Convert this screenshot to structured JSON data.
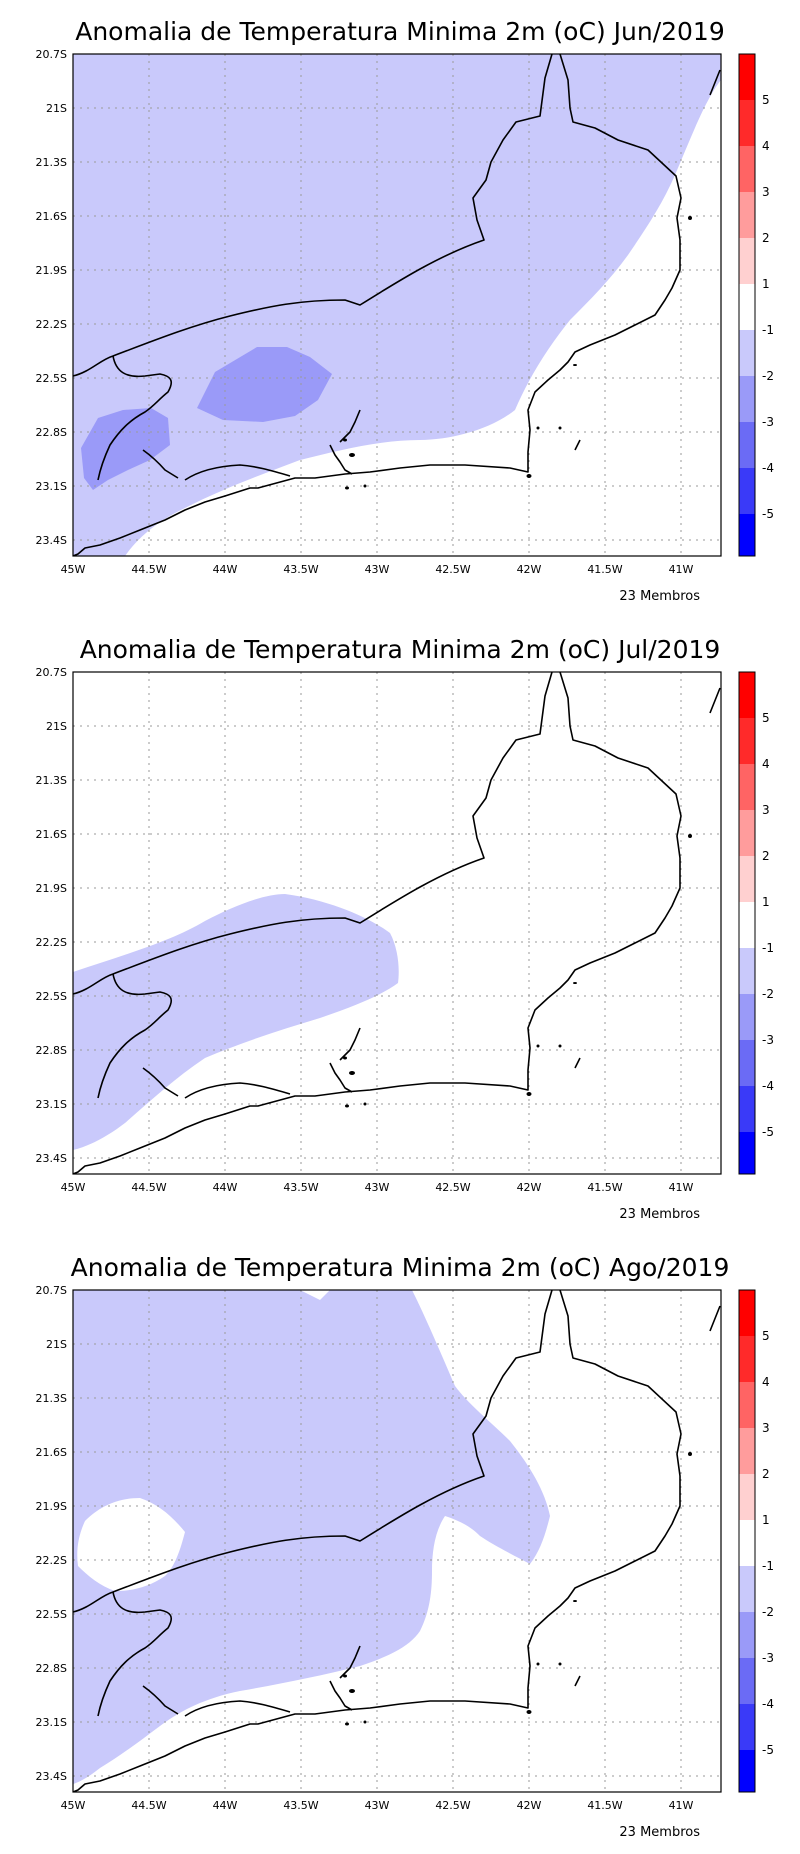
{
  "panels": [
    {
      "title": "Anomalia de Temperatura Minima 2m (oC) Jun/2019",
      "footer": "23 Membros",
      "shading_levels": [
        {
          "interval": "-2 to -1",
          "color": "#c9c9fb"
        },
        {
          "interval": "-3 to -2",
          "color": "#9a9af8"
        }
      ]
    },
    {
      "title": "Anomalia de Temperatura Minima 2m (oC) Jul/2019",
      "footer": "23 Membros",
      "shading_levels": [
        {
          "interval": "-2 to -1",
          "color": "#c9c9fb"
        }
      ]
    },
    {
      "title": "Anomalia de Temperatura Minima 2m (oC) Ago/2019",
      "footer": "23 Membros",
      "shading_levels": [
        {
          "interval": "-2 to -1",
          "color": "#c9c9fb"
        }
      ]
    }
  ],
  "axes": {
    "lat_ticks": [
      "20.7S",
      "21S",
      "21.3S",
      "21.6S",
      "21.9S",
      "22.2S",
      "22.5S",
      "22.8S",
      "23.1S",
      "23.4S"
    ],
    "lon_ticks": [
      "45W",
      "44.5W",
      "44W",
      "43.5W",
      "43W",
      "42.5W",
      "42W",
      "41.5W",
      "41W"
    ]
  },
  "colorbar": {
    "labels": [
      "5",
      "4",
      "3",
      "2",
      "1",
      "-1",
      "-2",
      "-3",
      "-4",
      "-5"
    ],
    "colors": [
      "#ff0000",
      "#ff2a2a",
      "#ff6464",
      "#ff9c9c",
      "#ffd0d0",
      "#ffffff",
      "#c9c9fb",
      "#9a9af8",
      "#6b6bf5",
      "#3a3af8",
      "#0000ff"
    ]
  }
}
